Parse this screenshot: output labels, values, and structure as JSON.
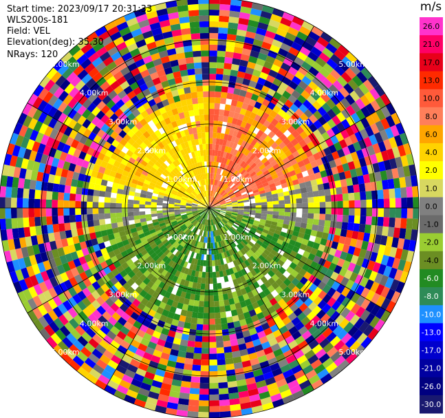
{
  "info": {
    "start_time": "Start time: 2023/09/17 20:31:33",
    "instrument": "WLS200s-181",
    "field": "Field: VEL",
    "elevation": "Elevation(deg): 35.30",
    "nrays": "NRays: 120"
  },
  "chart_data": {
    "type": "heatmap",
    "projection": "polar-ppi",
    "title": "",
    "field": "VEL",
    "units": "m/s",
    "nrays": 120,
    "max_range_km": 5.0,
    "range_ring_labels": [
      "1.00km",
      "2.00km",
      "3.00km",
      "4.00km",
      "5.00km"
    ],
    "colorbar": {
      "title": "m/s",
      "ticks": [
        "26.0",
        "21.0",
        "17.0",
        "13.0",
        "10.0",
        "8.0",
        "6.0",
        "4.0",
        "2.0",
        "1.0",
        "0.0",
        "-1.0",
        "-2.0",
        "-4.0",
        "-6.0",
        "-8.0",
        "-10.0",
        "-13.0",
        "-17.0",
        "-21.0",
        "-26.0",
        "-30.0"
      ],
      "colors": [
        "#ff33cc",
        "#ff0066",
        "#e8001a",
        "#ff2a00",
        "#ff5a3a",
        "#ff7f5a",
        "#ffa500",
        "#ffd300",
        "#ffff00",
        "#d8d860",
        "#808080",
        "#6b6b6b",
        "#9acd32",
        "#6b8e23",
        "#228b22",
        "#2e8b57",
        "#1e90ff",
        "#0000ff",
        "#0000cd",
        "#0000a0",
        "#000080",
        "#191970"
      ]
    },
    "pattern": {
      "near_northeast": "positive 6 to 10 m/s",
      "near_northwest": "positive 2 to 4 m/s",
      "near_east_west": "around 0 m/s",
      "near_south": "negative -2 to -8 m/s",
      "far_range": "noise, all values"
    }
  }
}
